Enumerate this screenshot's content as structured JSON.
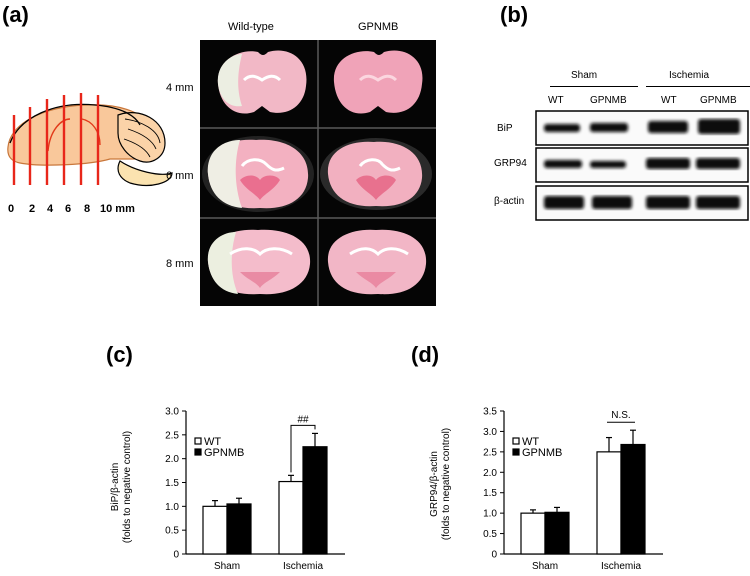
{
  "panels": {
    "a": "(a)",
    "b": "(b)",
    "c": "(c)",
    "d": "(d)"
  },
  "panel_a": {
    "col_headers": [
      "Wild-type",
      "GPNMB"
    ],
    "row_labels": [
      "4 mm",
      "6 mm",
      "8 mm"
    ],
    "brain_ticks": [
      "0",
      "2",
      "4",
      "6",
      "8",
      "10 mm"
    ]
  },
  "panel_b": {
    "groups": [
      "Sham",
      "Ischemia"
    ],
    "lanes": [
      "WT",
      "GPNMB",
      "WT",
      "GPNMB"
    ],
    "rows": [
      "BiP",
      "GRP94",
      "β-actin"
    ]
  },
  "chart_data": [
    {
      "type": "bar",
      "title": "",
      "ylabel": "BiP/β-actin (folds to negative control)",
      "ylim": [
        0,
        3.0
      ],
      "yticks": [
        "0",
        "0.5",
        "1.0",
        "1.5",
        "2.0",
        "2.5",
        "3.0"
      ],
      "categories": [
        "Sham",
        "Ischemia"
      ],
      "series": [
        {
          "name": "WT",
          "values": [
            1.0,
            1.52
          ],
          "errors": [
            0.12,
            0.13
          ],
          "color": "#ffffff"
        },
        {
          "name": "GPNMB",
          "values": [
            1.05,
            2.25
          ],
          "errors": [
            0.12,
            0.28
          ],
          "color": "#000000"
        }
      ],
      "annotation": "##",
      "legend": "top-left"
    },
    {
      "type": "bar",
      "title": "",
      "ylabel": "GRP94/β-actin (folds to negative control)",
      "ylim": [
        0,
        3.5
      ],
      "yticks": [
        "0",
        "0.5",
        "1.0",
        "1.5",
        "2.0",
        "2.5",
        "3.0",
        "3.5"
      ],
      "categories": [
        "Sham",
        "Ischemia"
      ],
      "series": [
        {
          "name": "WT",
          "values": [
            1.0,
            2.5
          ],
          "errors": [
            0.08,
            0.35
          ],
          "color": "#ffffff"
        },
        {
          "name": "GPNMB",
          "values": [
            1.02,
            2.68
          ],
          "errors": [
            0.12,
            0.35
          ],
          "color": "#000000"
        }
      ],
      "annotation": "N.S.",
      "legend": "top-left"
    }
  ]
}
